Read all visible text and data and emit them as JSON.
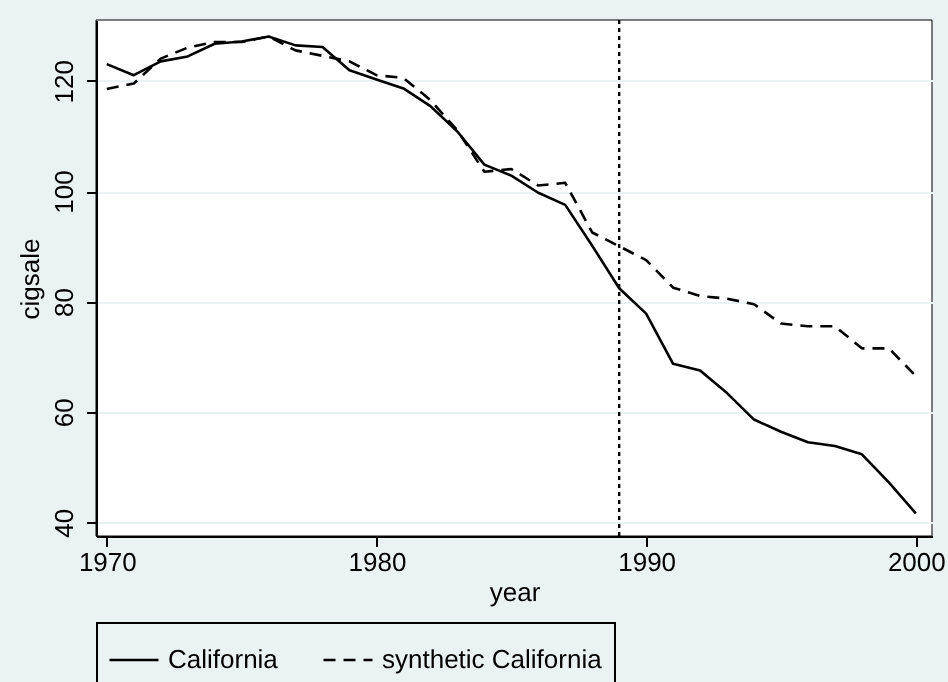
{
  "chart_data": {
    "type": "line",
    "xlabel": "year",
    "ylabel": "cigsale",
    "x": [
      1970,
      1971,
      1972,
      1973,
      1974,
      1975,
      1976,
      1977,
      1978,
      1979,
      1980,
      1981,
      1982,
      1983,
      1984,
      1985,
      1986,
      1987,
      1988,
      1989,
      1990,
      1991,
      1992,
      1993,
      1994,
      1995,
      1996,
      1997,
      1998,
      1999,
      2000
    ],
    "series": [
      {
        "name": "California",
        "color": "#000000",
        "line_style": "solid",
        "values": [
          123,
          121,
          123.5,
          124.4,
          126.7,
          127.1,
          128,
          126.4,
          126.1,
          121.9,
          120.2,
          118.6,
          115.4,
          110.8,
          104.8,
          102.8,
          99.7,
          97.5,
          90.1,
          82.4,
          77.8,
          68.7,
          67.5,
          63.4,
          58.6,
          56.4,
          54.5,
          53.8,
          52.3,
          47.2,
          41.6
        ]
      },
      {
        "name": "synthetic California",
        "color": "#000000",
        "line_style": "dashed",
        "values": [
          118.5,
          119.5,
          124,
          126,
          127,
          127,
          128,
          125.5,
          124.5,
          123.5,
          121,
          120.5,
          116.5,
          111,
          103.5,
          104,
          101,
          101.5,
          92.5,
          90,
          87.5,
          82.5,
          81,
          80.5,
          79.5,
          76,
          75.5,
          75.5,
          71.5,
          71.5,
          66.5
        ]
      }
    ],
    "xlim": [
      1969.6,
      2000.6
    ],
    "xticks": [
      1970,
      1980,
      1990,
      2000
    ],
    "ylim": [
      37.5,
      131
    ],
    "yticks": [
      40,
      60,
      80,
      100,
      120
    ],
    "ref_lines": [
      {
        "axis": "x",
        "value": 1989,
        "line_style": "dotted",
        "color": "#000000"
      }
    ],
    "grid": "y",
    "legend": "bottom"
  }
}
